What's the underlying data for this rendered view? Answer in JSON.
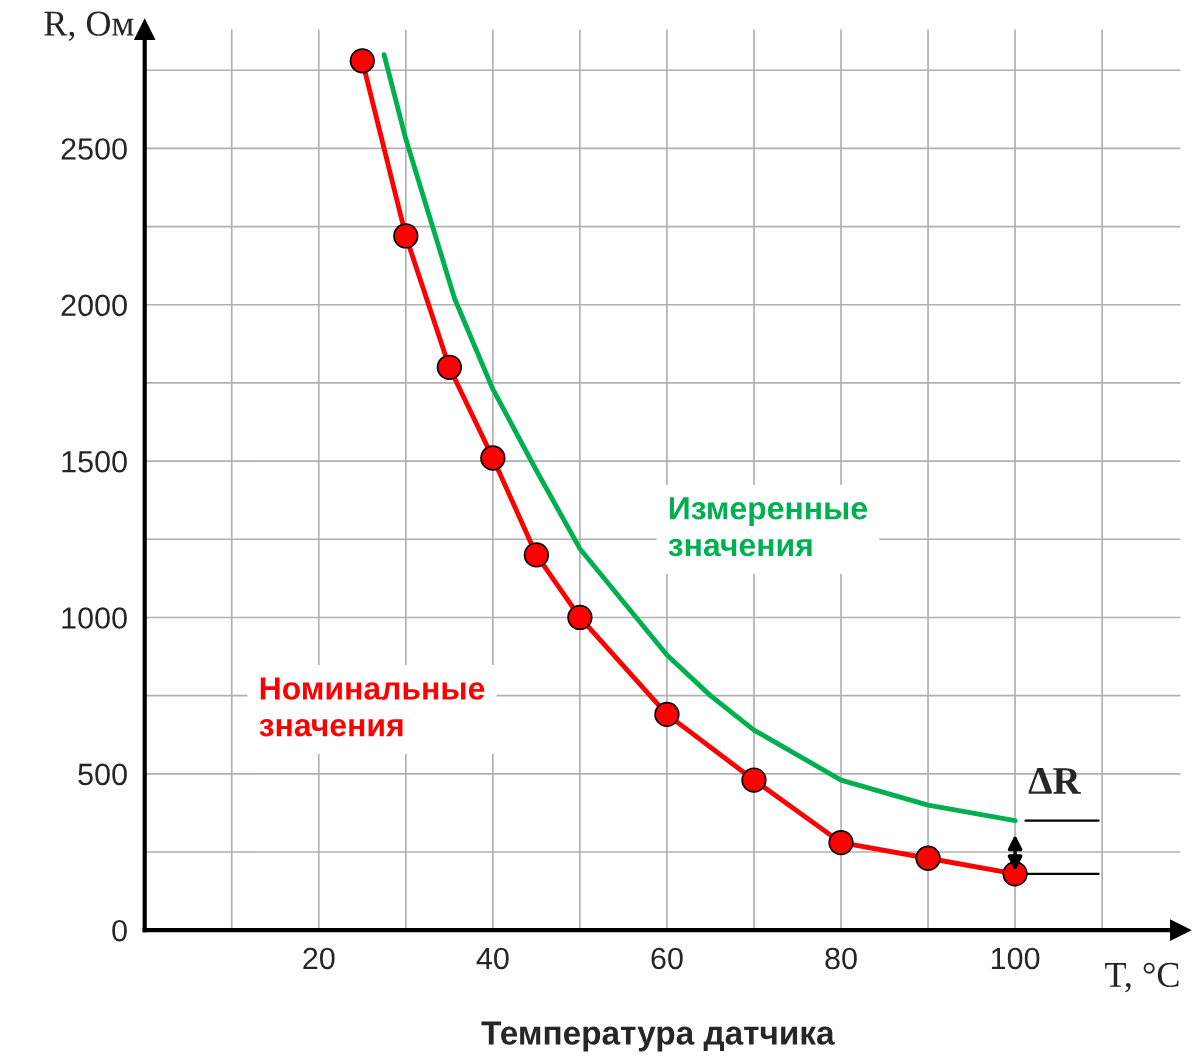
{
  "chart_data": {
    "type": "line",
    "xlabel": "T, °C",
    "ylabel": "R, Ом",
    "xlim": [
      0,
      119
    ],
    "ylim": [
      0,
      2880
    ],
    "xticks": [
      {
        "value": 10,
        "label": null
      },
      20,
      {
        "value": 30,
        "label": null
      },
      40,
      {
        "value": 50,
        "label": null
      },
      60,
      {
        "value": 70,
        "label": null
      },
      80,
      {
        "value": 90,
        "label": null
      },
      100,
      {
        "value": 110,
        "label": null
      }
    ],
    "yticks": [
      0,
      {
        "value": 250,
        "label": null
      },
      500,
      {
        "value": 750,
        "label": null
      },
      1000,
      {
        "value": 1250,
        "label": null
      },
      1500,
      {
        "value": 1750,
        "label": null
      },
      2000,
      {
        "value": 2250,
        "label": null
      },
      2500,
      {
        "value": 2750,
        "label": null
      }
    ],
    "grid": true,
    "legend": false,
    "series": [
      {
        "name": "Номинальные значения",
        "color": "#ff0000",
        "marker": "circle",
        "x": [
          25,
          30,
          35,
          40,
          45,
          50,
          60,
          70,
          80,
          90,
          100
        ],
        "values": [
          2780,
          2220,
          1800,
          1510,
          1200,
          1000,
          690,
          480,
          280,
          230,
          180
        ]
      },
      {
        "name": "Измеренные значения",
        "color": "#00b050",
        "x": [
          27.5,
          30,
          35.6,
          40,
          45,
          50,
          60,
          65,
          70,
          80,
          90,
          100
        ],
        "values": [
          2800,
          2530,
          2020,
          1730,
          1470,
          1220,
          880,
          750,
          640,
          480,
          400,
          350
        ]
      }
    ],
    "annotations": [
      {
        "text": "ΔR",
        "x": 100,
        "y": 350
      },
      "Температура датчика"
    ]
  }
}
